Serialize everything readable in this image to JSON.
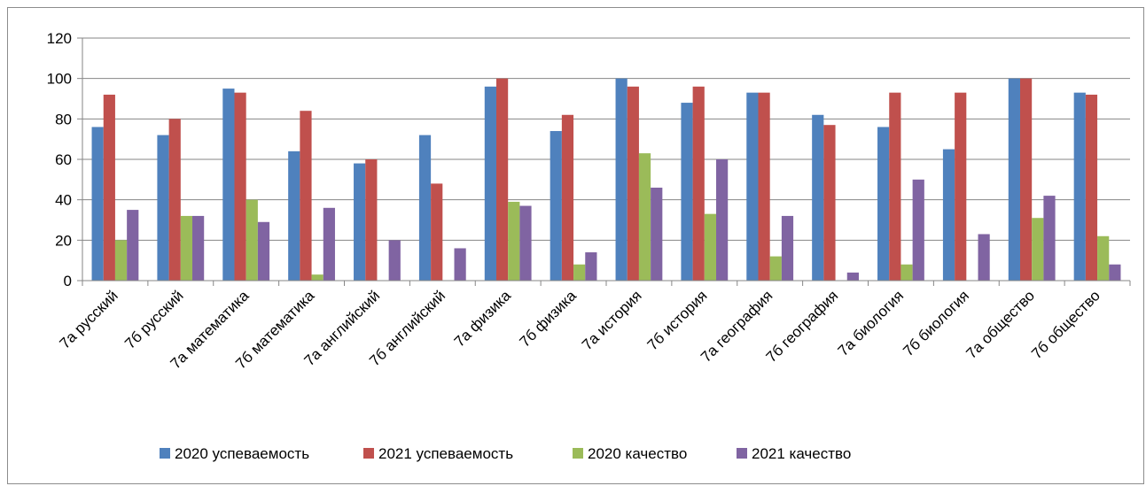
{
  "chart_data": {
    "type": "bar",
    "title": "",
    "xlabel": "",
    "ylabel": "",
    "ylim": [
      0,
      120
    ],
    "yticks": [
      0,
      20,
      40,
      60,
      80,
      100,
      120
    ],
    "grid": true,
    "legend_position": "bottom",
    "categories": [
      "7а русский",
      "7б русский",
      "7а математика",
      "7б математика",
      "7а английский",
      "7б английский",
      "7а физика",
      "7б физика",
      "7а история",
      "7б история",
      "7а география",
      "7б география",
      "7а биология",
      "7б биология",
      "7а общество",
      "7б общество"
    ],
    "series": [
      {
        "name": "2020 успеваемость",
        "color": "#4f81bd",
        "values": [
          76,
          72,
          95,
          64,
          58,
          72,
          96,
          74,
          100,
          88,
          93,
          82,
          76,
          65,
          100,
          93
        ]
      },
      {
        "name": "2021 успеваемость",
        "color": "#c0504d",
        "values": [
          92,
          80,
          93,
          84,
          60,
          48,
          100,
          82,
          96,
          96,
          93,
          77,
          93,
          93,
          100,
          92
        ]
      },
      {
        "name": "2020 качество",
        "color": "#9bbb59",
        "values": [
          20,
          32,
          40,
          3,
          0,
          0,
          39,
          8,
          63,
          33,
          12,
          0,
          8,
          0,
          31,
          22
        ]
      },
      {
        "name": "2021 качество",
        "color": "#8064a2",
        "values": [
          35,
          32,
          29,
          36,
          20,
          16,
          37,
          14,
          46,
          60,
          32,
          4,
          50,
          23,
          42,
          8
        ]
      }
    ]
  }
}
